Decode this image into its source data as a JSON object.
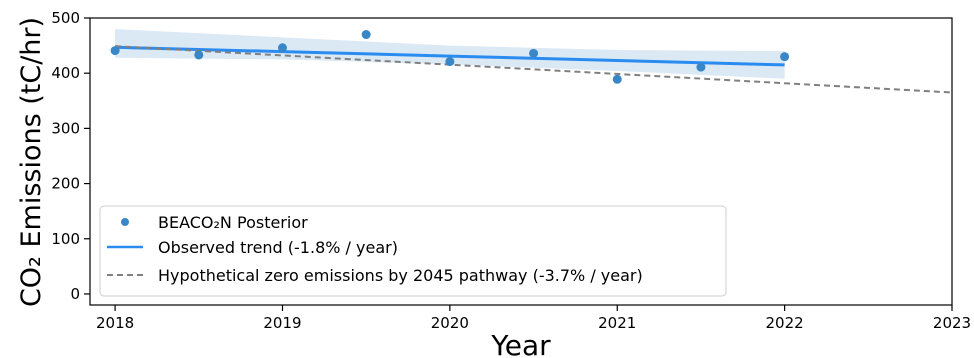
{
  "chart_data": {
    "type": "scatter",
    "title": "",
    "xlabel": "Year",
    "ylabel": "CO₂ Emissions (tC/hr)",
    "xlim": [
      2017.85,
      2023.0
    ],
    "ylim": [
      -20,
      500
    ],
    "x_ticks": [
      "2018",
      "2019",
      "2020",
      "2021",
      "2022",
      "2023"
    ],
    "y_ticks": [
      "0",
      "100",
      "200",
      "300",
      "400",
      "500"
    ],
    "grid": false,
    "legend_position": "lower-left",
    "series": [
      {
        "name": "BEACO₂N Posterior",
        "kind": "scatter",
        "color": "#3a87c7",
        "x": [
          2018.0,
          2018.5,
          2019.0,
          2019.5,
          2020.0,
          2020.5,
          2021.0,
          2021.5,
          2022.0
        ],
        "y": [
          441,
          433,
          446,
          470,
          421,
          436,
          389,
          411,
          430
        ]
      },
      {
        "name": "Observed trend (-1.8% / year)",
        "kind": "line",
        "color": "#2a8cf0",
        "x": [
          2018.0,
          2019.0,
          2020.0,
          2021.0,
          2022.0
        ],
        "y": [
          447,
          439,
          431,
          423,
          415
        ],
        "band_upper": [
          480,
          465,
          450,
          442,
          440
        ],
        "band_lower": [
          428,
          425,
          416,
          404,
          390
        ]
      },
      {
        "name": "Hypothetical zero emissions by 2045 pathway (-3.7% / year)",
        "kind": "dashed-line",
        "color": "#808080",
        "x": [
          2018.0,
          2023.0
        ],
        "y": [
          449,
          365
        ]
      }
    ]
  }
}
